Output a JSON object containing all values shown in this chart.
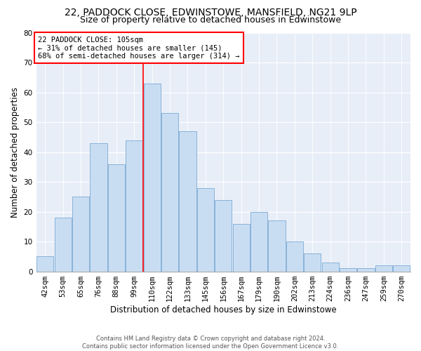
{
  "title1": "22, PADDOCK CLOSE, EDWINSTOWE, MANSFIELD, NG21 9LP",
  "title2": "Size of property relative to detached houses in Edwinstowe",
  "xlabel": "Distribution of detached houses by size in Edwinstowe",
  "ylabel": "Number of detached properties",
  "footnote1": "Contains HM Land Registry data © Crown copyright and database right 2024.",
  "footnote2": "Contains public sector information licensed under the Open Government Licence v3.0.",
  "bar_labels": [
    "42sqm",
    "53sqm",
    "65sqm",
    "76sqm",
    "88sqm",
    "99sqm",
    "110sqm",
    "122sqm",
    "133sqm",
    "145sqm",
    "156sqm",
    "167sqm",
    "179sqm",
    "190sqm",
    "202sqm",
    "213sqm",
    "224sqm",
    "236sqm",
    "247sqm",
    "259sqm",
    "270sqm"
  ],
  "bar_values": [
    5,
    18,
    25,
    43,
    36,
    44,
    63,
    53,
    47,
    28,
    24,
    16,
    20,
    17,
    10,
    6,
    3,
    1,
    1,
    2,
    2
  ],
  "bar_color": "#c9ddf2",
  "bar_edge_color": "#7aaad4",
  "vline_x_index": 6,
  "vline_color": "red",
  "annotation_text": "22 PADDOCK CLOSE: 105sqm\n← 31% of detached houses are smaller (145)\n68% of semi-detached houses are larger (314) →",
  "annotation_box_color": "white",
  "annotation_box_edge_color": "red",
  "ylim": [
    0,
    80
  ],
  "yticks": [
    0,
    10,
    20,
    30,
    40,
    50,
    60,
    70,
    80
  ],
  "bg_color": "#e8eef8",
  "title1_fontsize": 10,
  "title2_fontsize": 9,
  "xlabel_fontsize": 8.5,
  "ylabel_fontsize": 8.5,
  "tick_fontsize": 7.5,
  "annotation_fontsize": 7.5,
  "footnote_fontsize": 6.0
}
